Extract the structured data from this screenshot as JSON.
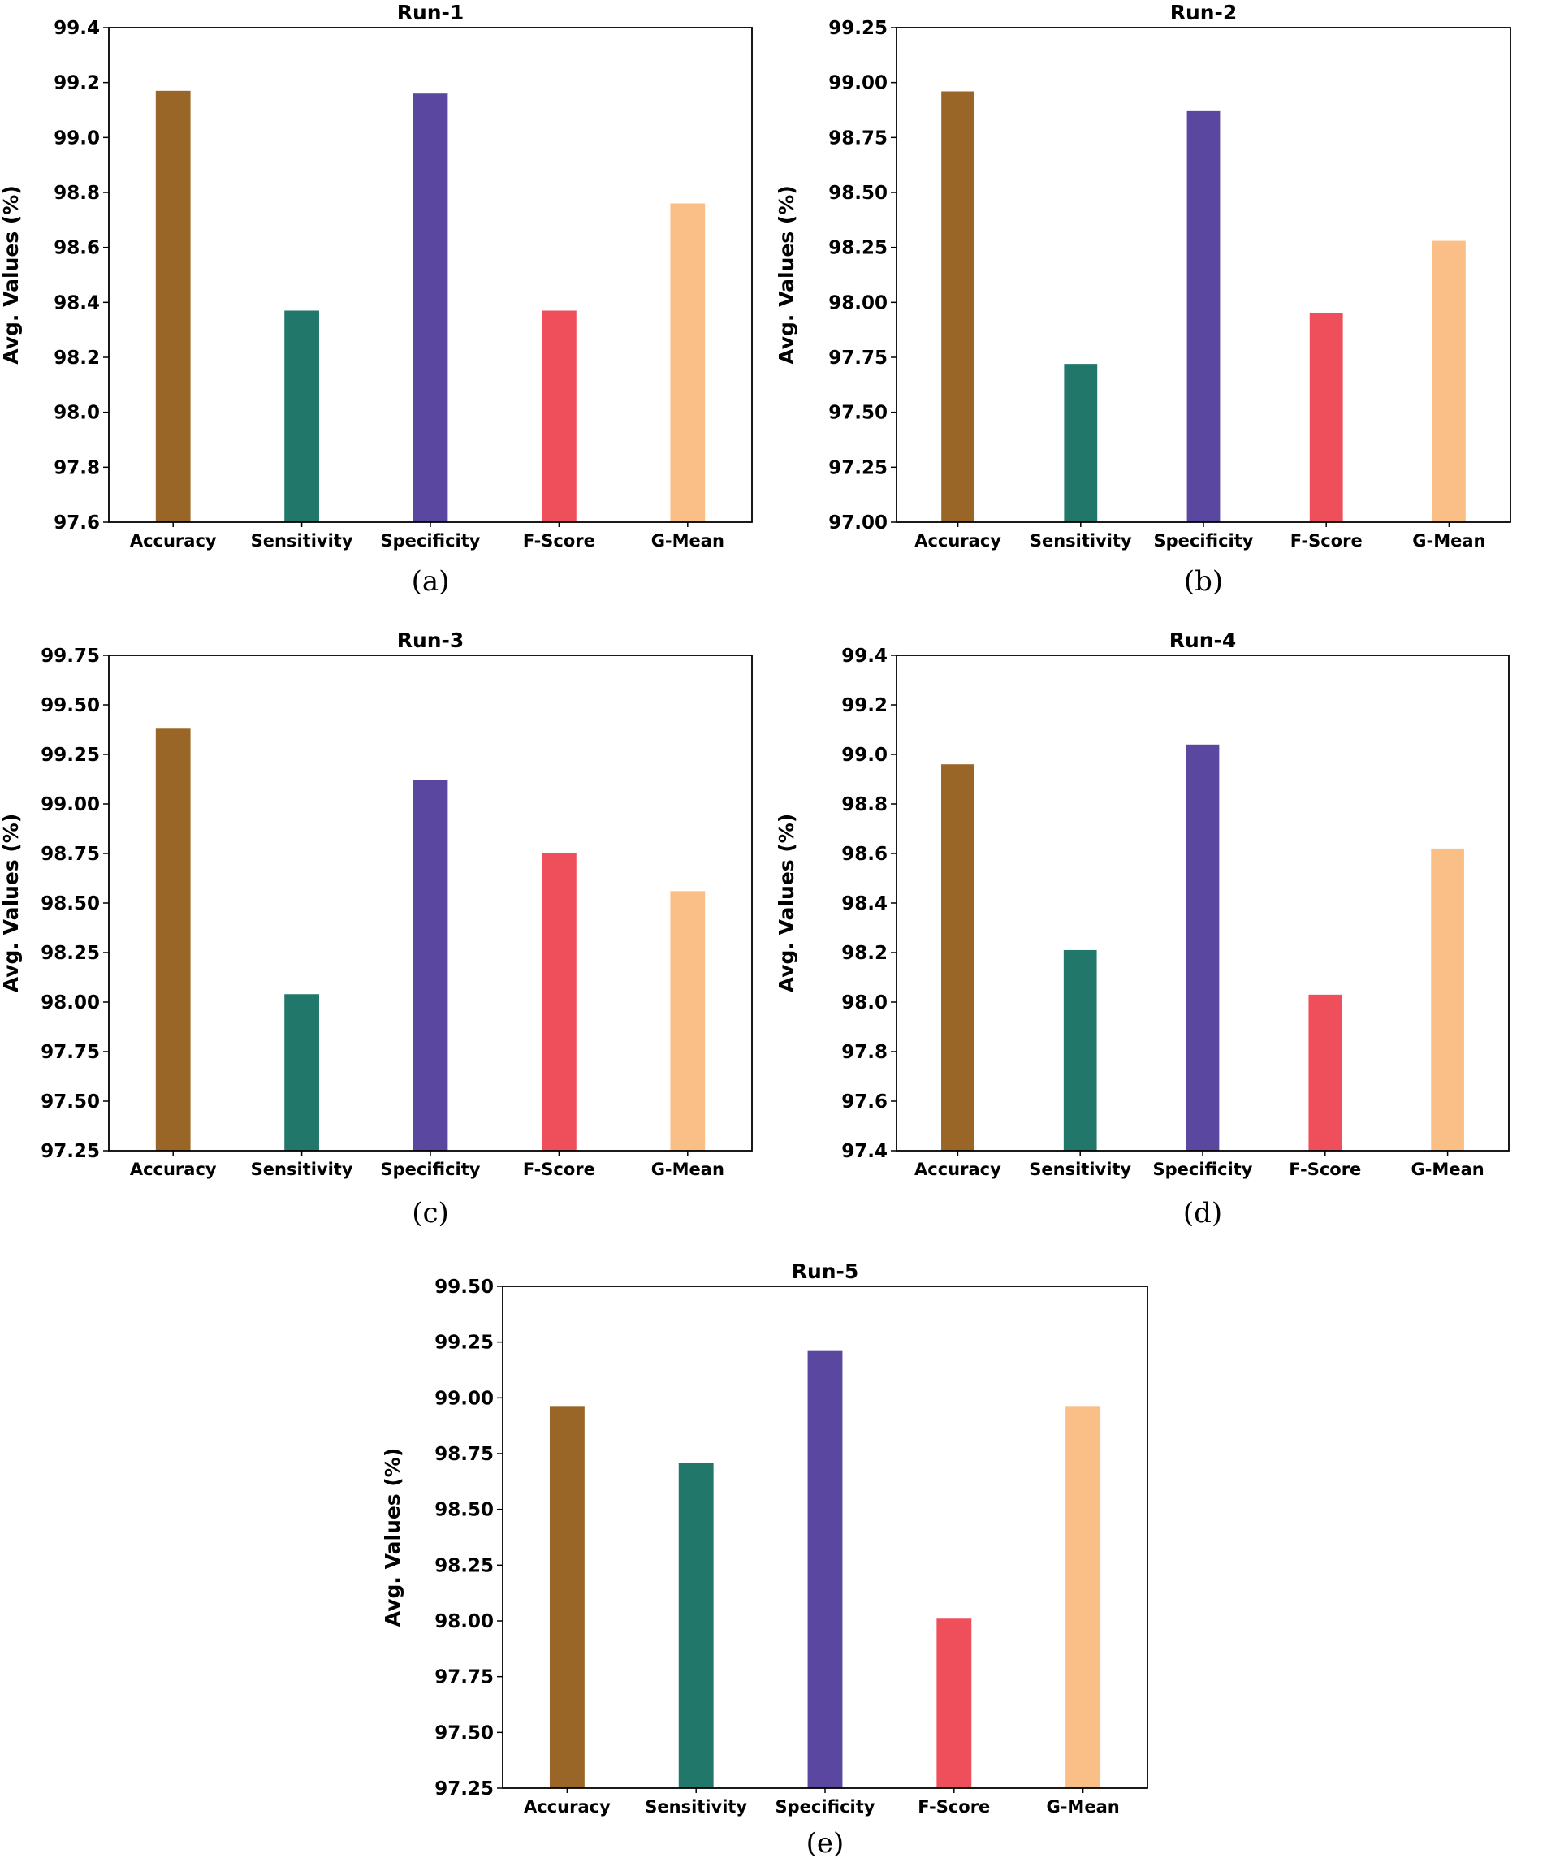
{
  "chart_data": [
    {
      "type": "bar",
      "caption": "(a)",
      "title": "Run-1",
      "ylabel": "Avg. Values (%)",
      "categories": [
        "Accuracy",
        "Sensitivity",
        "Specificity",
        "F-Score",
        "G-Mean"
      ],
      "values": [
        99.17,
        98.37,
        99.16,
        98.37,
        98.76
      ],
      "ylim": [
        97.6,
        99.4
      ],
      "yticks": [
        "97.6",
        "97.8",
        "98.0",
        "98.2",
        "98.4",
        "98.6",
        "98.8",
        "99.0",
        "99.2",
        "99.4"
      ]
    },
    {
      "type": "bar",
      "caption": "(b)",
      "title": "Run-2",
      "ylabel": "Avg. Values (%)",
      "categories": [
        "Accuracy",
        "Sensitivity",
        "Specificity",
        "F-Score",
        "G-Mean"
      ],
      "values": [
        98.96,
        97.72,
        98.87,
        97.95,
        98.28
      ],
      "ylim": [
        97.0,
        99.25
      ],
      "yticks": [
        "97.00",
        "97.25",
        "97.50",
        "97.75",
        "98.00",
        "98.25",
        "98.50",
        "98.75",
        "99.00",
        "99.25"
      ]
    },
    {
      "type": "bar",
      "caption": "(c)",
      "title": "Run-3",
      "ylabel": "Avg. Values (%)",
      "categories": [
        "Accuracy",
        "Sensitivity",
        "Specificity",
        "F-Score",
        "G-Mean"
      ],
      "values": [
        99.38,
        98.04,
        99.12,
        98.75,
        98.56
      ],
      "ylim": [
        97.25,
        99.75
      ],
      "yticks": [
        "97.25",
        "97.50",
        "97.75",
        "98.00",
        "98.25",
        "98.50",
        "98.75",
        "99.00",
        "99.25",
        "99.50",
        "99.75"
      ]
    },
    {
      "type": "bar",
      "caption": "(d)",
      "title": "Run-4",
      "ylabel": "Avg. Values (%)",
      "categories": [
        "Accuracy",
        "Sensitivity",
        "Specificity",
        "F-Score",
        "G-Mean"
      ],
      "values": [
        98.96,
        98.21,
        99.04,
        98.03,
        98.62
      ],
      "ylim": [
        97.4,
        99.4
      ],
      "yticks": [
        "97.4",
        "97.6",
        "97.8",
        "98.0",
        "98.2",
        "98.4",
        "98.6",
        "98.8",
        "99.0",
        "99.2",
        "99.4"
      ]
    },
    {
      "type": "bar",
      "caption": "(e)",
      "title": "Run-5",
      "ylabel": "Avg. Values (%)",
      "categories": [
        "Accuracy",
        "Sensitivity",
        "Specificity",
        "F-Score",
        "G-Mean"
      ],
      "values": [
        98.96,
        98.71,
        99.21,
        98.01,
        98.96
      ],
      "ylim": [
        97.25,
        99.5
      ],
      "yticks": [
        "97.25",
        "97.50",
        "97.75",
        "98.00",
        "98.25",
        "98.50",
        "98.75",
        "99.00",
        "99.25",
        "99.50"
      ]
    }
  ],
  "colors": [
    "#9a6628",
    "#21786a",
    "#5a479f",
    "#ef4f5a",
    "#fabf87"
  ]
}
